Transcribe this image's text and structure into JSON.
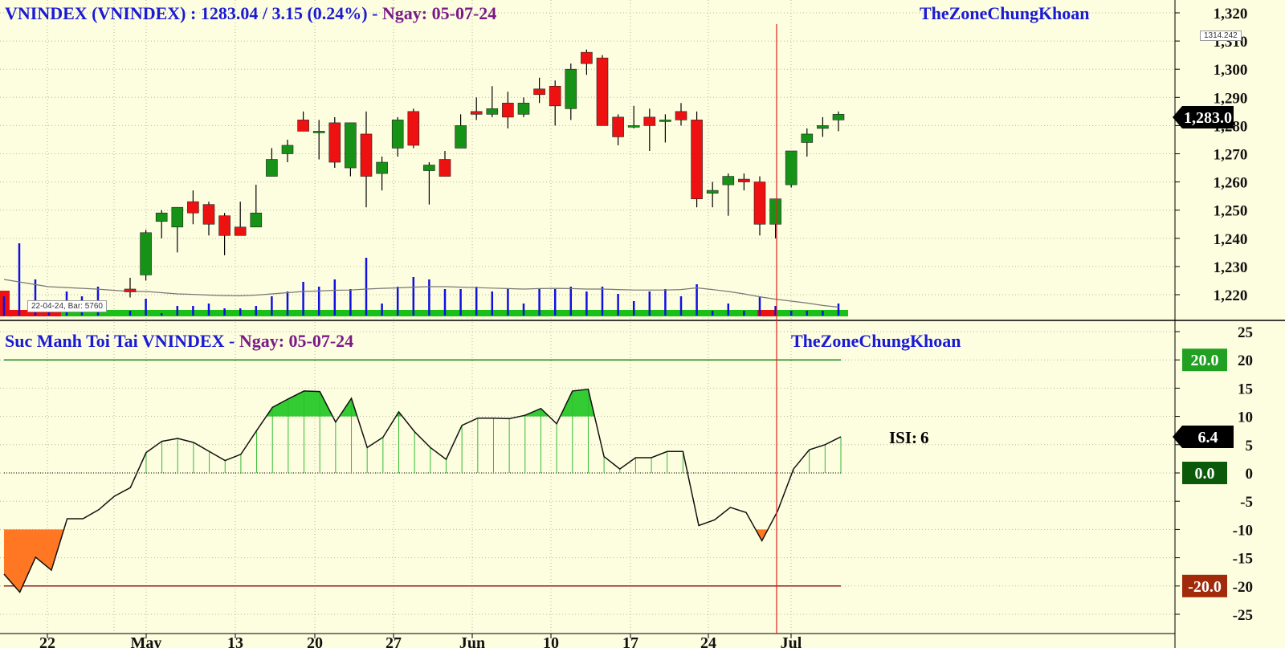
{
  "top_panel": {
    "title_prefix": "VNINDEX (VNINDEX) : 1283.04  /  3.15 (0.24%)  -  ",
    "title_date": "Ngay:  05-07-24",
    "brand": "TheZoneChungKhoan",
    "tooltip": "22-04-24, Bar: 5760",
    "marker_label": "1314.242",
    "last_price_label": "1,283.0"
  },
  "bottom_panel": {
    "title_prefix": "Suc Manh Toi Tai VNINDEX  -  ",
    "title_date": "Ngay:  05-07-24",
    "brand": "TheZoneChungKhoan",
    "isi_label": "ISI:",
    "isi_value": "6",
    "upper_label": "20.0",
    "current_label": "6.4",
    "zero_label": "0.0",
    "lower_label": "-20.0"
  },
  "colors": {
    "background": "#fdfde0",
    "up_candle": "#169316",
    "down_candle": "#ee1111",
    "volume": "#1010e0",
    "indicator_fill_green": "#33cc33",
    "indicator_fill_orange": "#ff7722",
    "upper_line": "#1a8a1a",
    "lower_line": "#8b1a1a",
    "cursor_line": "#e02020"
  },
  "chart_data": [
    {
      "type": "candlestick",
      "ylim": [
        1215,
        1322
      ],
      "y_ticks": [
        "1,220",
        "1,230",
        "1,240",
        "1,250",
        "1,260",
        "1,270",
        "1,280",
        "1,290",
        "1,300",
        "1,310",
        "1,320"
      ],
      "x_tick_labels": [
        "22",
        "May",
        "13",
        "20",
        "27",
        "Jun",
        "10",
        "17",
        "24",
        "Jul"
      ],
      "grid": true,
      "candles": [
        {
          "o": 1222,
          "h": 1226,
          "l": 1219,
          "c": 1221
        },
        {
          "o": 1227,
          "h": 1243,
          "l": 1225,
          "c": 1242
        },
        {
          "o": 1246,
          "h": 1250,
          "l": 1240,
          "c": 1249
        },
        {
          "o": 1244,
          "h": 1251,
          "l": 1235,
          "c": 1251
        },
        {
          "o": 1253,
          "h": 1257,
          "l": 1245,
          "c": 1249
        },
        {
          "o": 1252,
          "h": 1253,
          "l": 1241,
          "c": 1245
        },
        {
          "o": 1248,
          "h": 1249,
          "l": 1234,
          "c": 1241
        },
        {
          "o": 1244,
          "h": 1253,
          "l": 1241,
          "c": 1241
        },
        {
          "o": 1244,
          "h": 1259,
          "l": 1244,
          "c": 1249
        },
        {
          "o": 1262,
          "h": 1272,
          "l": 1262,
          "c": 1268
        },
        {
          "o": 1270,
          "h": 1275,
          "l": 1267,
          "c": 1273
        },
        {
          "o": 1282,
          "h": 1285,
          "l": 1278,
          "c": 1278
        },
        {
          "o": 1278,
          "h": 1282,
          "l": 1268,
          "c": 1278
        },
        {
          "o": 1281,
          "h": 1283,
          "l": 1265,
          "c": 1267
        },
        {
          "o": 1265,
          "h": 1281,
          "l": 1262,
          "c": 1281
        },
        {
          "o": 1277,
          "h": 1285,
          "l": 1251,
          "c": 1262
        },
        {
          "o": 1263,
          "h": 1269,
          "l": 1257,
          "c": 1267
        },
        {
          "o": 1272,
          "h": 1283,
          "l": 1269,
          "c": 1282
        },
        {
          "o": 1285,
          "h": 1286,
          "l": 1272,
          "c": 1273
        },
        {
          "o": 1264,
          "h": 1267,
          "l": 1252,
          "c": 1266
        },
        {
          "o": 1268,
          "h": 1271,
          "l": 1262,
          "c": 1262
        },
        {
          "o": 1272,
          "h": 1284,
          "l": 1272,
          "c": 1280
        },
        {
          "o": 1285,
          "h": 1290,
          "l": 1282,
          "c": 1284
        },
        {
          "o": 1284,
          "h": 1294,
          "l": 1283,
          "c": 1286
        },
        {
          "o": 1288,
          "h": 1292,
          "l": 1279,
          "c": 1283
        },
        {
          "o": 1284,
          "h": 1290,
          "l": 1283,
          "c": 1288
        },
        {
          "o": 1293,
          "h": 1297,
          "l": 1288,
          "c": 1291
        },
        {
          "o": 1294,
          "h": 1296,
          "l": 1280,
          "c": 1287
        },
        {
          "o": 1286,
          "h": 1302,
          "l": 1282,
          "c": 1300
        },
        {
          "o": 1306,
          "h": 1307,
          "l": 1298,
          "c": 1302
        },
        {
          "o": 1304,
          "h": 1305,
          "l": 1280,
          "c": 1280
        },
        {
          "o": 1283,
          "h": 1284,
          "l": 1273,
          "c": 1276
        },
        {
          "o": 1280,
          "h": 1287,
          "l": 1279,
          "c": 1280
        },
        {
          "o": 1283,
          "h": 1286,
          "l": 1271,
          "c": 1280
        },
        {
          "o": 1282,
          "h": 1284,
          "l": 1274,
          "c": 1282
        },
        {
          "o": 1285,
          "h": 1288,
          "l": 1280,
          "c": 1282
        },
        {
          "o": 1282,
          "h": 1285,
          "l": 1251,
          "c": 1254
        },
        {
          "o": 1256,
          "h": 1260,
          "l": 1251,
          "c": 1257
        },
        {
          "o": 1259,
          "h": 1263,
          "l": 1248,
          "c": 1262
        },
        {
          "o": 1261,
          "h": 1263,
          "l": 1257,
          "c": 1260
        },
        {
          "o": 1260,
          "h": 1262,
          "l": 1241,
          "c": 1245
        },
        {
          "o": 1245,
          "h": 1254,
          "l": 1240,
          "c": 1254
        },
        {
          "o": 1259,
          "h": 1271,
          "l": 1258,
          "c": 1271
        },
        {
          "o": 1274,
          "h": 1279,
          "l": 1269,
          "c": 1277
        },
        {
          "o": 1279,
          "h": 1283,
          "l": 1276,
          "c": 1280
        },
        {
          "o": 1282,
          "h": 1285,
          "l": 1278,
          "c": 1284
        }
      ],
      "volume": [
        2,
        7,
        1,
        4,
        4,
        5,
        3,
        3,
        4,
        8,
        10,
        14,
        12,
        15,
        11,
        24,
        5,
        12,
        16,
        15,
        11,
        11,
        12,
        10,
        11,
        5,
        11,
        11,
        12,
        10,
        12,
        9,
        6,
        10,
        11,
        8,
        13,
        2,
        5,
        2,
        8,
        4,
        2,
        2,
        2,
        5
      ],
      "volume_average": [
        10,
        10,
        9.5,
        9,
        8.8,
        8.5,
        8.3,
        8.2,
        8.5,
        9,
        9.5,
        10,
        10.2,
        10.5,
        10.6,
        11,
        11.3,
        11.5,
        11.8,
        12,
        12,
        11.8,
        11.6,
        11.4,
        11.2,
        11,
        11.2,
        11.3,
        11.2,
        11,
        11,
        10.8,
        10.6,
        10.6,
        10.6,
        10.8,
        11.5,
        10.8,
        10,
        9,
        7.8,
        6.8,
        6,
        5.2,
        4.2,
        3.5
      ]
    },
    {
      "type": "area",
      "ylim": [
        -25,
        25
      ],
      "y_ticks": [
        "25",
        "20",
        "15",
        "10",
        "5",
        "0",
        "-5",
        "-10",
        "-15",
        "-20",
        "-25"
      ],
      "upper_band": 20,
      "lower_band": -20,
      "values": [
        -17.9,
        -21.1,
        -14.9,
        -17.2,
        -8.1,
        -8.1,
        -6.5,
        -4.1,
        -2.6,
        3.6,
        5.6,
        6.1,
        5.4,
        3.8,
        2.2,
        3.3,
        7.5,
        11.6,
        13.1,
        14.5,
        14.4,
        9.0,
        13.2,
        4.5,
        6.3,
        10.8,
        7.3,
        4.5,
        2.4,
        8.4,
        9.7,
        9.7,
        9.6,
        10.2,
        11.4,
        8.7,
        14.5,
        14.8,
        2.9,
        0.7,
        2.7,
        2.7,
        3.8,
        3.8,
        -9.3,
        -8.3,
        -6.1,
        -7.0,
        -12.0,
        -6.7,
        0.7,
        4.1,
        5.0,
        6.4
      ]
    }
  ]
}
